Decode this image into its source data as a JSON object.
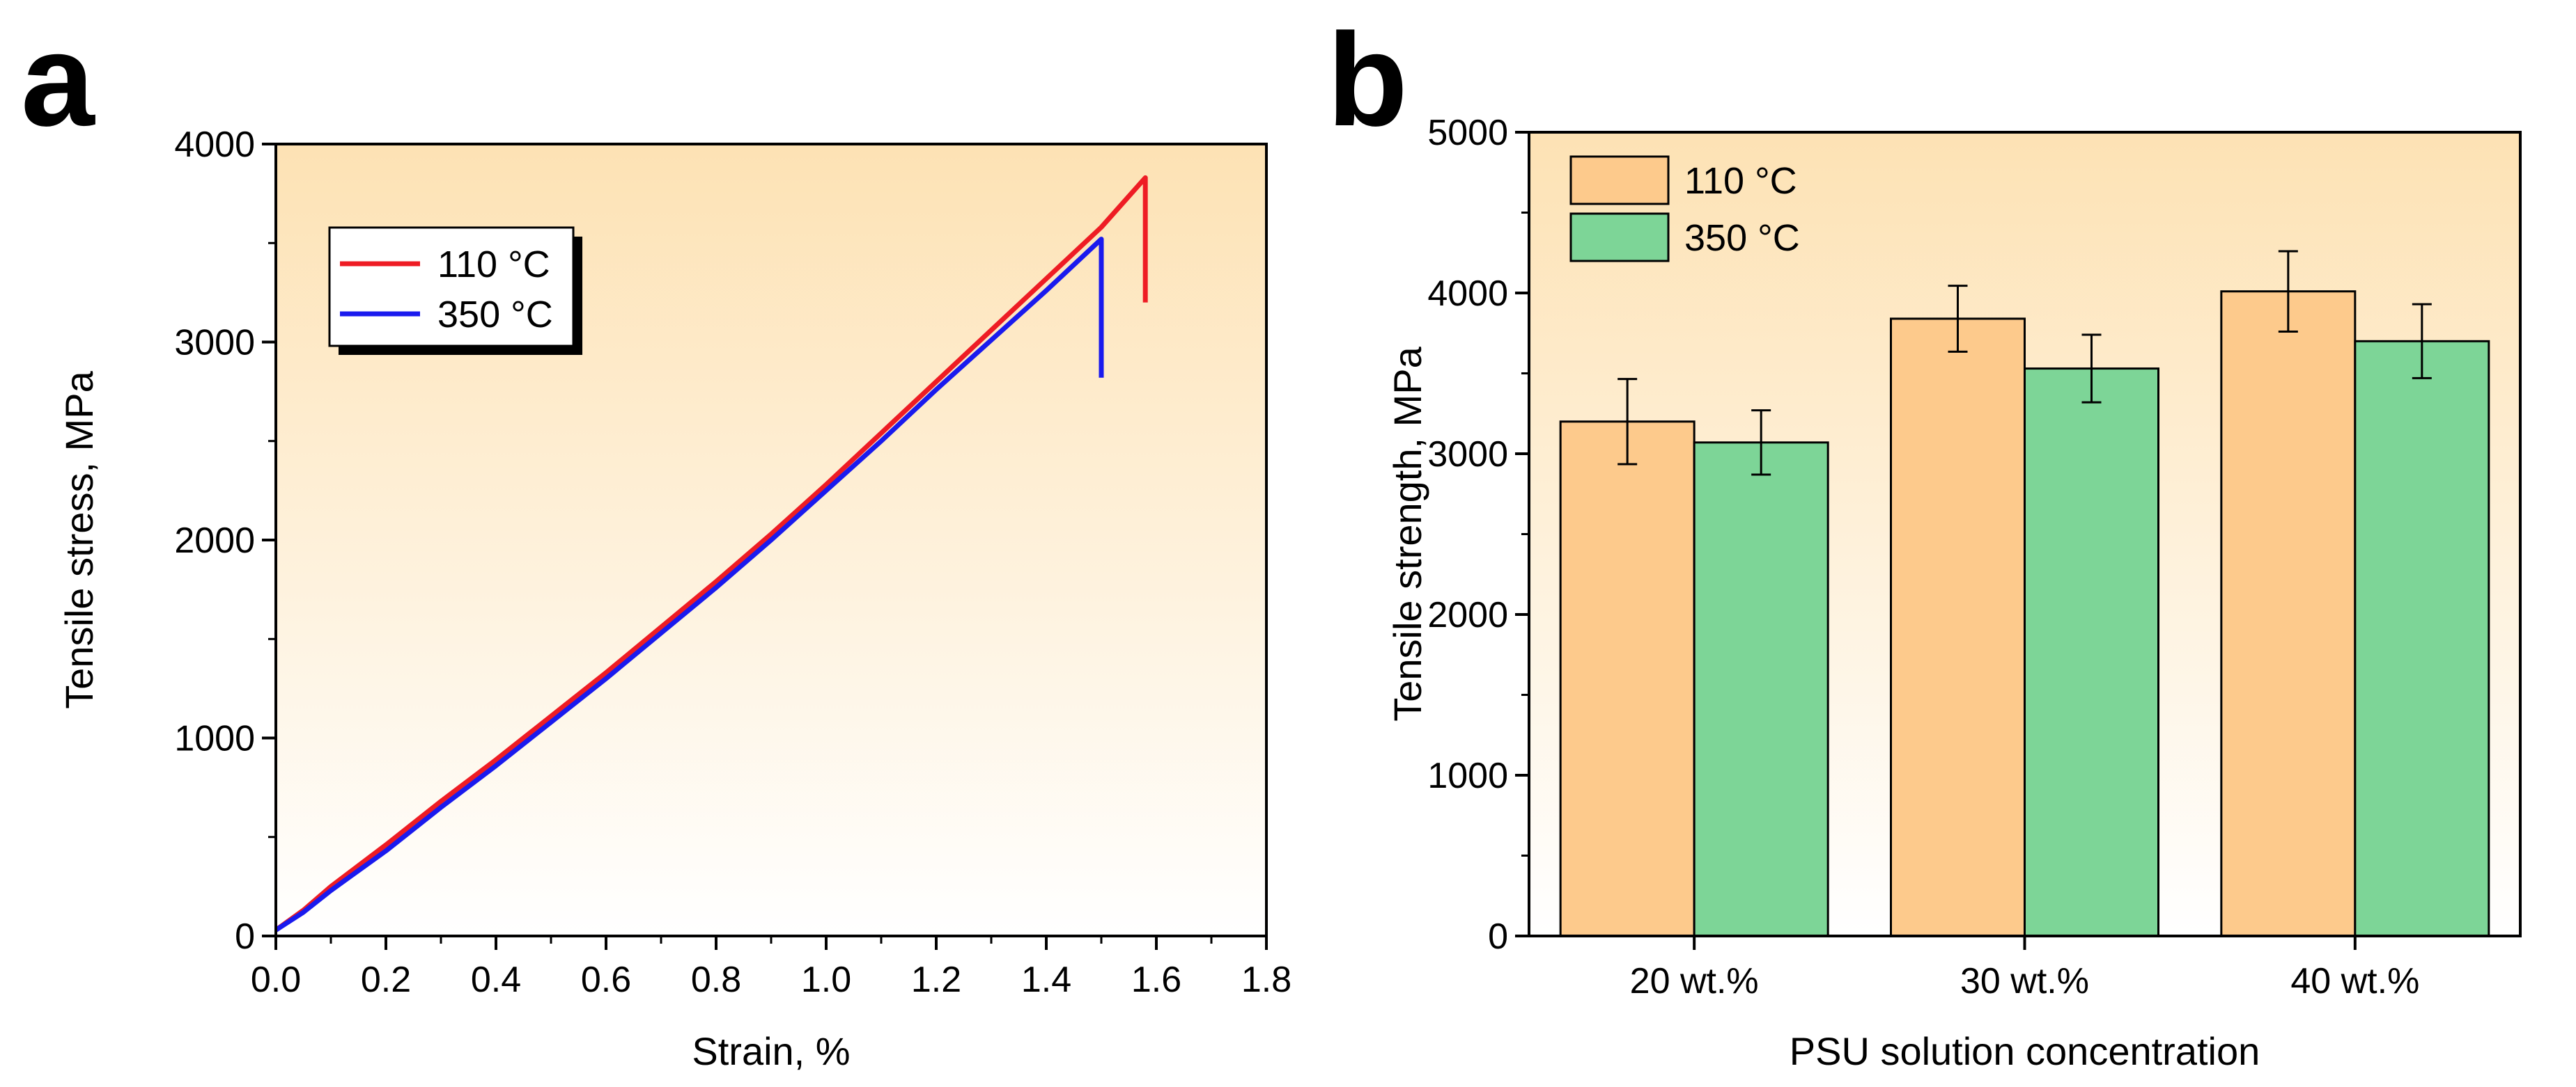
{
  "figure": {
    "panel_a_letter": "a",
    "panel_b_letter": "b"
  },
  "chart_data": [
    {
      "type": "line",
      "panel": "a",
      "title": "",
      "xlabel": "Strain, %",
      "ylabel": "Tensile stress, MPa",
      "xlim": [
        0.0,
        1.8
      ],
      "ylim": [
        0,
        4000
      ],
      "xticks": [
        "0.0",
        "0.2",
        "0.4",
        "0.6",
        "0.8",
        "1.0",
        "1.2",
        "1.4",
        "1.6",
        "1.8"
      ],
      "yticks": [
        "0",
        "1000",
        "2000",
        "3000",
        "4000"
      ],
      "legend_position": "top-left",
      "series": [
        {
          "name": "110 °C",
          "color": "#ee1c24",
          "x": [
            0.0,
            0.05,
            0.1,
            0.2,
            0.3,
            0.4,
            0.5,
            0.6,
            0.7,
            0.8,
            0.9,
            1.0,
            1.1,
            1.2,
            1.3,
            1.4,
            1.5,
            1.58,
            1.58
          ],
          "y": [
            30,
            130,
            250,
            460,
            680,
            890,
            1110,
            1330,
            1560,
            1790,
            2030,
            2280,
            2540,
            2800,
            3060,
            3320,
            3580,
            3830,
            3200
          ]
        },
        {
          "name": "350 °C",
          "color": "#1a1aee",
          "x": [
            0.0,
            0.05,
            0.1,
            0.2,
            0.3,
            0.4,
            0.5,
            0.6,
            0.7,
            0.8,
            0.9,
            1.0,
            1.1,
            1.2,
            1.3,
            1.4,
            1.5,
            1.5
          ],
          "y": [
            30,
            120,
            230,
            430,
            650,
            860,
            1080,
            1300,
            1530,
            1760,
            2000,
            2250,
            2500,
            2760,
            3010,
            3260,
            3520,
            2820
          ]
        }
      ]
    },
    {
      "type": "bar",
      "panel": "b",
      "title": "",
      "xlabel": "PSU solution concentration",
      "ylabel": "Tensile strength, MPa",
      "ylim": [
        0,
        5000
      ],
      "yticks": [
        "0",
        "1000",
        "2000",
        "3000",
        "4000",
        "5000"
      ],
      "categories": [
        "20 wt.%",
        "30 wt.%",
        "40 wt.%"
      ],
      "legend_position": "top-left",
      "series": [
        {
          "name": "110 °C",
          "color": "#fdca8c",
          "values": [
            3200,
            3840,
            4010
          ],
          "errors": [
            265,
            205,
            250
          ]
        },
        {
          "name": "350 °C",
          "color": "#7dd597",
          "values": [
            3070,
            3530,
            3700
          ],
          "errors": [
            200,
            210,
            230
          ]
        }
      ]
    }
  ]
}
